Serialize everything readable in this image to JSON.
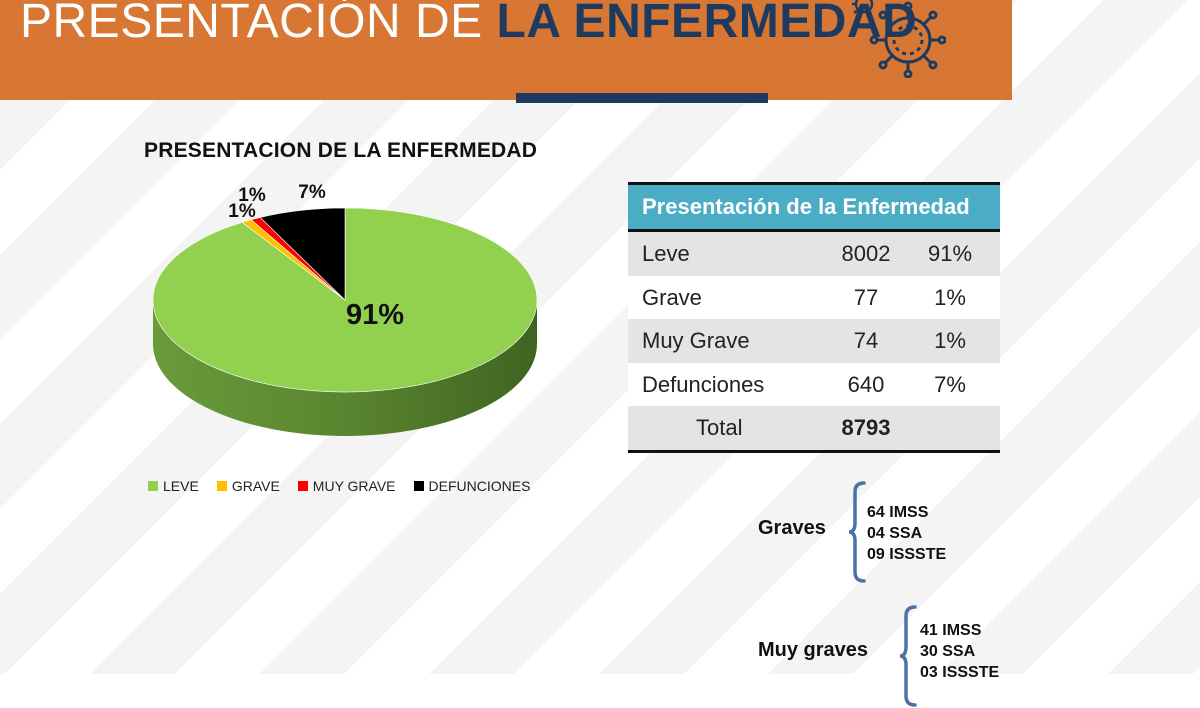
{
  "header": {
    "title_light": "PRESENTACIÓN DE ",
    "title_bold": "LA ENFERMEDAD"
  },
  "chart_data": {
    "type": "pie",
    "title": "PRESENTACION DE LA ENFERMEDAD",
    "categories": [
      "LEVE",
      "GRAVE",
      "MUY GRAVE",
      "DEFUNCIONES"
    ],
    "values": [
      8002,
      77,
      74,
      640
    ],
    "labels": [
      "91%",
      "1%",
      "1%",
      "7%"
    ],
    "colors": [
      "#92d050",
      "#ffc000",
      "#ff0000",
      "#000000"
    ],
    "style": "3d",
    "legend_position": "bottom"
  },
  "table": {
    "title": "Presentación de la Enfermedad",
    "rows": [
      {
        "name": "Leve",
        "count": "8002",
        "pct": "91%"
      },
      {
        "name": "Grave",
        "count": "77",
        "pct": "1%"
      },
      {
        "name": "Muy Grave",
        "count": "74",
        "pct": "1%"
      },
      {
        "name": "Defunciones",
        "count": "640",
        "pct": "7%"
      }
    ],
    "total_label": "Total",
    "total_value": "8793"
  },
  "groups": [
    {
      "label": "Graves",
      "items": [
        "64 IMSS",
        "04 SSA",
        "09 ISSSTE"
      ]
    },
    {
      "label": "Muy graves",
      "items": [
        "41 IMSS",
        "30 SSA",
        "03 ISSSTE"
      ]
    }
  ],
  "colors": {
    "header_orange": "#d77733",
    "navy": "#1f3a5f",
    "table_header": "#4bacc6",
    "brace": "#4a74a8"
  }
}
